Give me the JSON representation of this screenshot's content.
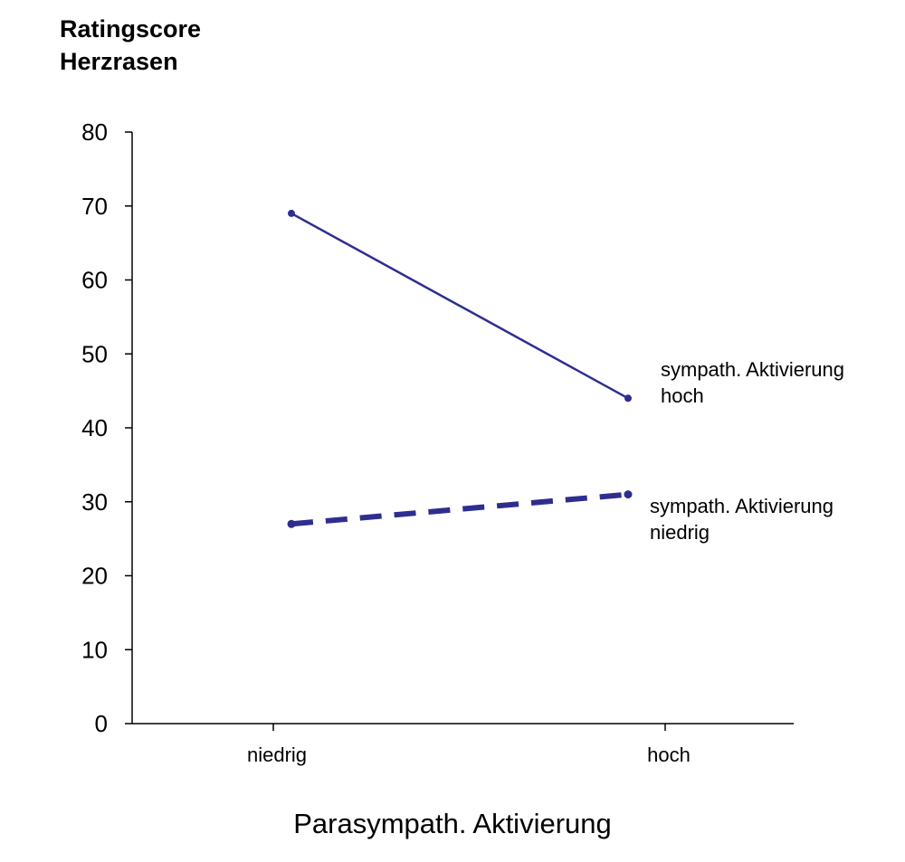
{
  "chart_data": {
    "type": "line",
    "ylabel_lines": [
      "Ratingscore",
      "Herzrasen"
    ],
    "xlabel": "Parasympath. Aktivierung",
    "categories": [
      "niedrig",
      "hoch"
    ],
    "ylim": [
      0,
      80
    ],
    "yticks": [
      0,
      10,
      20,
      30,
      40,
      50,
      60,
      70,
      80
    ],
    "grid": false,
    "series": [
      {
        "label_lines": [
          "sympath. Aktivierung",
          "hoch"
        ],
        "values": [
          69,
          44
        ],
        "style": "solid",
        "color": "#2e2e8f"
      },
      {
        "label_lines": [
          "sympath. Aktivierung",
          "niedrig"
        ],
        "values": [
          27,
          31
        ],
        "style": "dashed",
        "color": "#2e2e8f"
      }
    ]
  }
}
